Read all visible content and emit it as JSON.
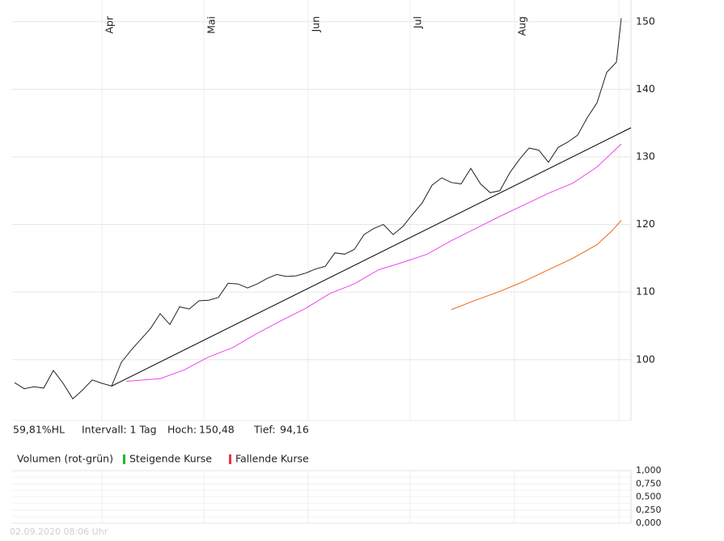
{
  "chart_data": [
    {
      "type": "line",
      "xlim": [
        -0.5,
        127
      ],
      "ylim": [
        91,
        153.2
      ],
      "xticks": [
        {
          "value": 18,
          "label": "Apr"
        },
        {
          "value": 39,
          "label": "Mai"
        },
        {
          "value": 60.5,
          "label": "Jun"
        },
        {
          "value": 81.5,
          "label": "Jul"
        },
        {
          "value": 103,
          "label": "Aug"
        }
      ],
      "yticks": [
        100,
        110,
        120,
        130,
        140,
        150
      ],
      "grid": true,
      "series": [
        {
          "color": "#222222",
          "x": [
            0,
            2,
            4,
            6,
            8,
            10,
            12,
            14,
            16,
            18,
            20,
            22,
            24,
            26,
            28,
            30,
            32,
            34,
            36,
            38,
            40,
            42,
            44,
            46,
            48,
            50,
            52,
            54,
            56,
            58,
            60,
            62,
            64,
            66,
            68,
            70,
            72,
            74,
            76,
            78,
            80,
            82,
            84,
            86,
            88,
            90,
            92,
            94,
            96,
            98,
            100,
            102,
            104,
            106,
            108,
            110,
            112,
            114,
            116,
            118,
            120,
            122,
            124,
            125
          ],
          "values": [
            96.6,
            95.7,
            96,
            95.8,
            98.4,
            96.5,
            94.2,
            95.5,
            97,
            96.5,
            96.1,
            99.6,
            101.4,
            103,
            104.6,
            106.8,
            105.2,
            107.8,
            107.5,
            108.7,
            108.8,
            109.2,
            111.3,
            111.2,
            110.6,
            111.2,
            112,
            112.6,
            112.3,
            112.4,
            112.8,
            113.4,
            113.8,
            115.8,
            115.6,
            116.3,
            118.5,
            119.4,
            120,
            118.5,
            119.7,
            121.5,
            123.2,
            125.8,
            126.9,
            126.2,
            126,
            128.3,
            126,
            124.7,
            125,
            127.6,
            129.6,
            131.3,
            131,
            129.2,
            131.4,
            132.2,
            133.2,
            135.8,
            138,
            142.5,
            144,
            150.5
          ]
        },
        {
          "color": "#000000",
          "x": [
            20,
            127
          ],
          "values": [
            96.1,
            134.3
          ]
        },
        {
          "color": "#ee44ee",
          "x": [
            23,
            30,
            35,
            40,
            45,
            50,
            55,
            60,
            65,
            70,
            75,
            80,
            85,
            90,
            95,
            100,
            105,
            110,
            115,
            120,
            125
          ],
          "values": [
            96.8,
            97.2,
            98.5,
            100.4,
            101.8,
            103.9,
            105.8,
            107.6,
            109.8,
            111.2,
            113.3,
            114.4,
            115.6,
            117.6,
            119.4,
            121.2,
            122.9,
            124.6,
            126.1,
            128.5,
            131.9
          ]
        },
        {
          "color": "#ee6611",
          "x": [
            90,
            95,
            100,
            105,
            110,
            115,
            120,
            123,
            125
          ],
          "values": [
            107.4,
            108.8,
            110.1,
            111.6,
            113.3,
            115,
            117,
            119,
            120.6
          ]
        }
      ]
    },
    {
      "type": "bar",
      "title": "Volumen (rot-grün)",
      "ylim": [
        0,
        1
      ],
      "yticks": [
        {
          "value": 1,
          "label": "1,000"
        },
        {
          "value": 0.75,
          "label": "0,750"
        },
        {
          "value": 0.5,
          "label": "0,500"
        },
        {
          "value": 0.25,
          "label": "0,250"
        },
        {
          "value": 0,
          "label": "0,000"
        }
      ],
      "series": [
        {
          "name": "Steigende Kurse",
          "color": "#22bb22",
          "values": []
        },
        {
          "name": "Fallende Kurse",
          "color": "#ee3344",
          "values": []
        }
      ]
    }
  ],
  "info": {
    "range": "59,81%HL",
    "interval": "Intervall: 1 Tag",
    "high_label": "Hoch:",
    "high": "150,48",
    "low_label": "Tief:",
    "low": "94,16"
  },
  "timestamp": "02.09.2020 08:06 Uhr"
}
